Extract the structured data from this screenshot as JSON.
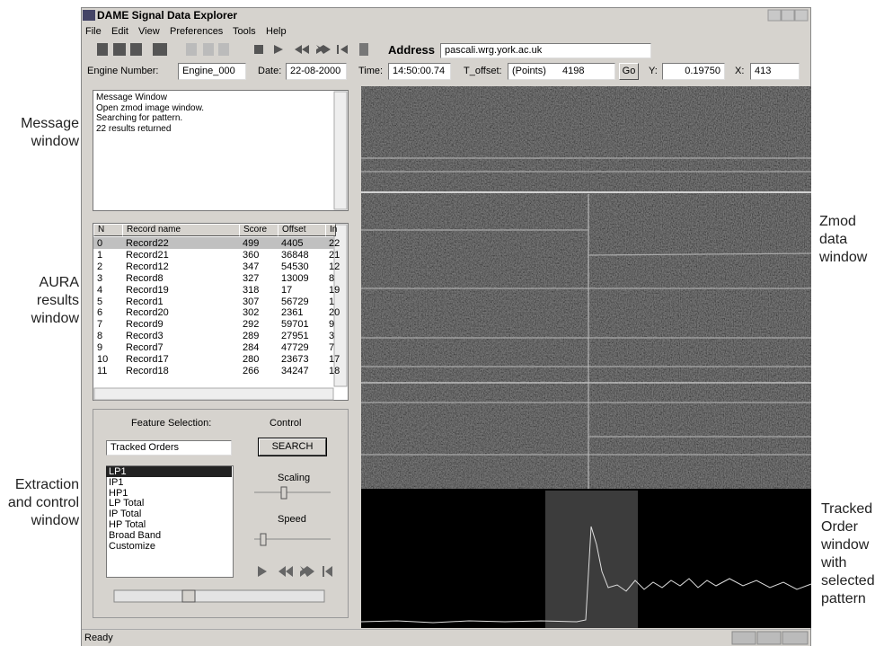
{
  "window": {
    "title": "DAME Signal Data Explorer",
    "menu": [
      "File",
      "Edit",
      "View",
      "Preferences",
      "Tools",
      "Help"
    ]
  },
  "toolbar": {
    "address_label": "Address",
    "address": "pascali.wrg.york.ac.uk"
  },
  "info_bar": {
    "engine_label": "Engine Number:",
    "engine": "Engine_000",
    "date_label": "Date:",
    "date": "22-08-2000",
    "time_label": "Time:",
    "time": "14:50:00.74",
    "offset_label": "T_offset:",
    "offset_unit": "(Points)",
    "offset": "4198",
    "go": "Go",
    "y_label": "Y:",
    "y": "0.19750",
    "x_label": "X:",
    "x": "413"
  },
  "message_window": {
    "lines": [
      "Message Window",
      "Open zmod image window.",
      "Searching for pattern.",
      "22 results returned"
    ]
  },
  "results": {
    "columns": [
      "N",
      "Record name",
      "Score",
      "Offset",
      "In"
    ],
    "rows": [
      [
        0,
        "Record22",
        499,
        4405,
        22
      ],
      [
        1,
        "Record21",
        360,
        36848,
        21
      ],
      [
        2,
        "Record12",
        347,
        54530,
        12
      ],
      [
        3,
        "Record8",
        327,
        13009,
        8
      ],
      [
        4,
        "Record19",
        318,
        17,
        19
      ],
      [
        5,
        "Record1",
        307,
        56729,
        1
      ],
      [
        6,
        "Record20",
        302,
        2361,
        20
      ],
      [
        7,
        "Record9",
        292,
        59701,
        9
      ],
      [
        8,
        "Record3",
        289,
        27951,
        3
      ],
      [
        9,
        "Record7",
        284,
        47729,
        7
      ],
      [
        10,
        "Record17",
        280,
        23673,
        17
      ],
      [
        11,
        "Record18",
        266,
        34247,
        18
      ]
    ]
  },
  "control": {
    "feature_label": "Feature Selection:",
    "control_label": "Control",
    "feature": "Tracked Orders",
    "search": "SEARCH",
    "features": [
      "LP1",
      "IP1",
      "HP1",
      "LP Total",
      "IP Total",
      "HP Total",
      "Broad Band",
      "Customize"
    ],
    "scaling": "Scaling",
    "speed": "Speed"
  },
  "status": "Ready",
  "annotations": [
    "Message window",
    "AURA results window",
    "Extraction and control window",
    "Zmod data window",
    "Tracked Order window with selected pattern"
  ]
}
